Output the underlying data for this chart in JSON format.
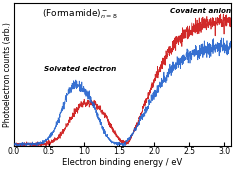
{
  "xlabel": "Electron binding energy / eV",
  "ylabel": "Photoelectron counts (arb.)",
  "xlim": [
    0.0,
    3.1
  ],
  "label_solvated": "Solvated electron",
  "label_covalent": "Covalent anion",
  "blue_color": "#2060cc",
  "red_color": "#cc1111",
  "background": "#ffffff",
  "xticks": [
    0.0,
    0.5,
    1.0,
    1.5,
    2.0,
    2.5,
    3.0
  ],
  "seed": 7
}
